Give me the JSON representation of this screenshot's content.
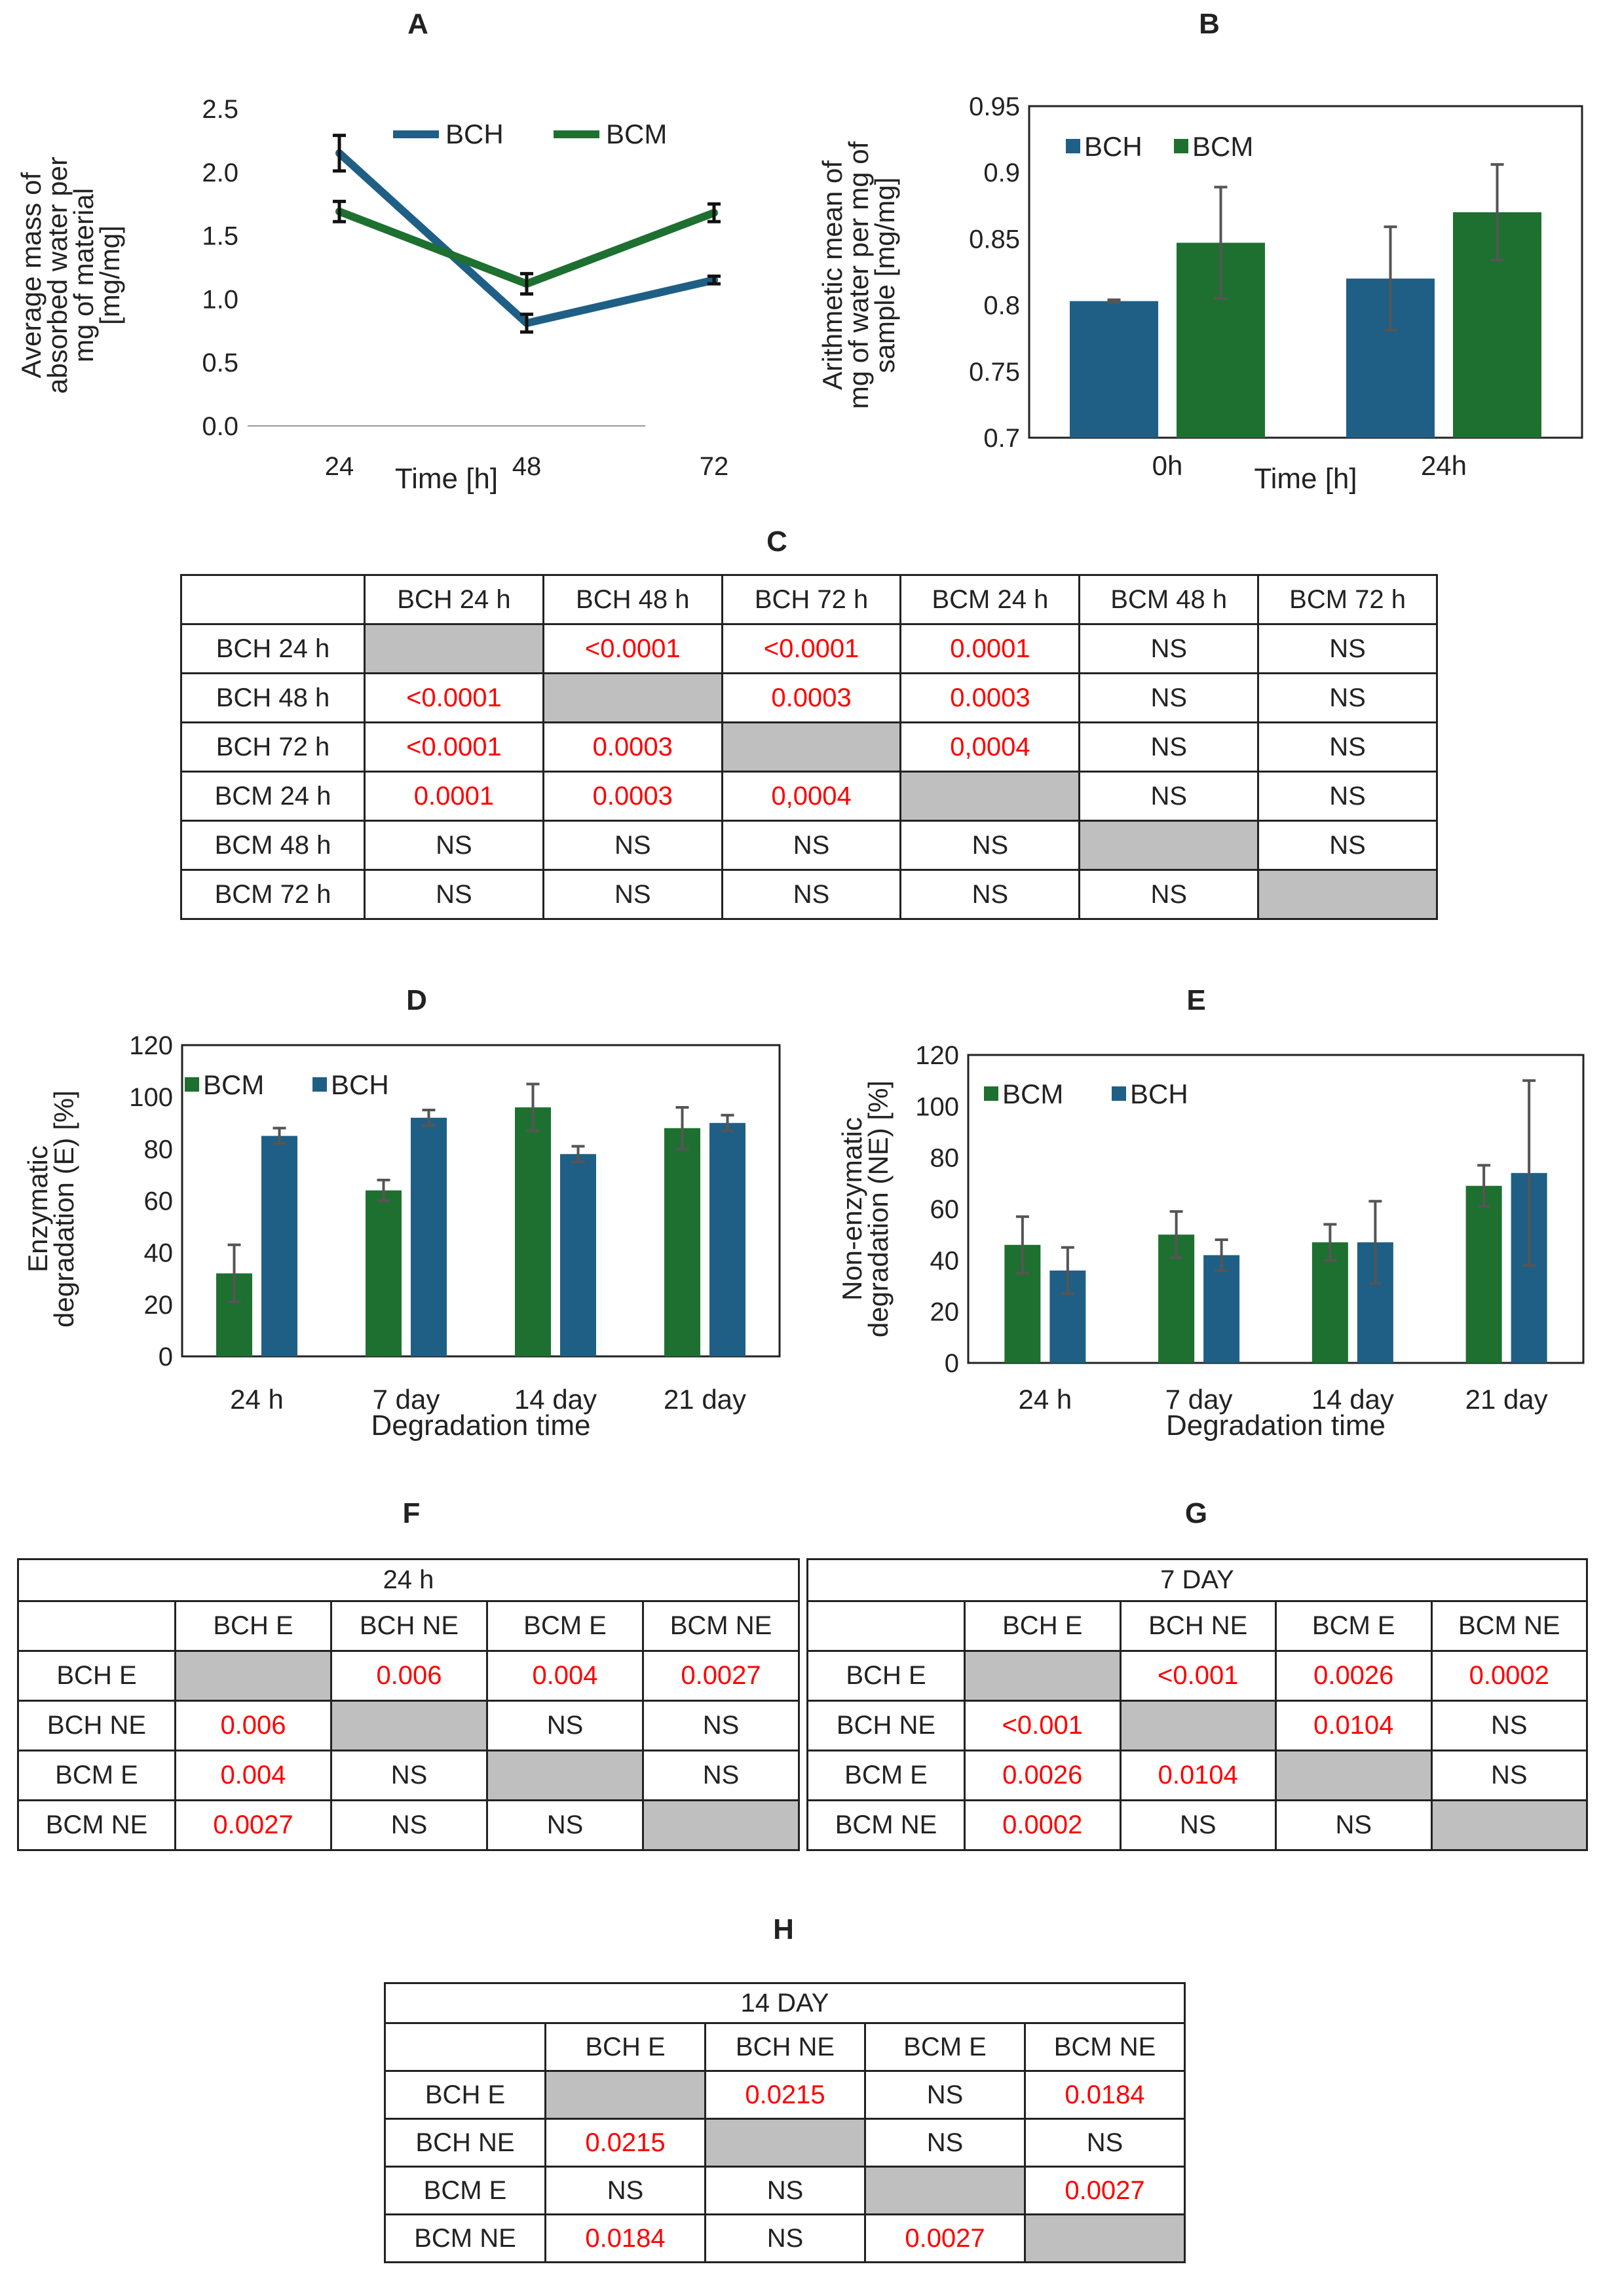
{
  "panels": {
    "A": "A",
    "B": "B",
    "C": "C",
    "D": "D",
    "E": "E",
    "F": "F",
    "G": "G",
    "H": "H"
  },
  "colors": {
    "bch": "#1f5f86",
    "bcm": "#1e7030",
    "significant": "#ff0000",
    "diagonal": "#bfbfbf"
  },
  "chart_data": [
    {
      "id": "A",
      "type": "line",
      "ylabel_lines": [
        "Average  mass of",
        "absorbed water per",
        "mg of material",
        "[mg/mg]"
      ],
      "xlabel": "Time [h]",
      "categories": [
        "24",
        "48",
        "72"
      ],
      "ylim": [
        0.0,
        2.5
      ],
      "yticks": [
        "0.0",
        "0.5",
        "1.0",
        "1.5",
        "2.0",
        "2.5"
      ],
      "series": [
        {
          "name": "BCH",
          "values": [
            2.15,
            0.81,
            1.15
          ],
          "errors": [
            0.14,
            0.07,
            0.03
          ]
        },
        {
          "name": "BCM",
          "values": [
            1.69,
            1.12,
            1.68
          ],
          "errors": [
            0.08,
            0.08,
            0.07
          ]
        }
      ]
    },
    {
      "id": "B",
      "type": "bar",
      "ylabel_lines": [
        "Arithmetic mean of",
        "mg of water per mg of",
        "sample [mg/mg]"
      ],
      "xlabel": "Time [h]",
      "categories": [
        "0h",
        "24h"
      ],
      "ylim": [
        0.7,
        0.95
      ],
      "yticks": [
        "0.7",
        "0.75",
        "0.8",
        "0.85",
        "0.9",
        "0.95"
      ],
      "series": [
        {
          "name": "BCH",
          "values": [
            0.803,
            0.82
          ],
          "errors": [
            0.001,
            0.039
          ]
        },
        {
          "name": "BCM",
          "values": [
            0.847,
            0.87
          ],
          "errors": [
            0.042,
            0.036
          ]
        }
      ]
    },
    {
      "id": "D",
      "type": "bar",
      "ylabel_lines": [
        "Enzymatic",
        "degradation (E) [%]"
      ],
      "xlabel": "Degradation time",
      "categories": [
        "24 h",
        "7 day",
        "14 day",
        "21 day"
      ],
      "ylim": [
        0,
        120
      ],
      "yticks": [
        "0",
        "20",
        "40",
        "60",
        "80",
        "100",
        "120"
      ],
      "series": [
        {
          "name": "BCM",
          "values": [
            32,
            64,
            96,
            88
          ],
          "errors": [
            11,
            4,
            9,
            8
          ]
        },
        {
          "name": "BCH",
          "values": [
            85,
            92,
            78,
            90
          ],
          "errors": [
            3,
            3,
            3,
            3
          ]
        }
      ]
    },
    {
      "id": "E",
      "type": "bar",
      "ylabel_lines": [
        "Non-enzymatic",
        "degradation (NE) [%]"
      ],
      "xlabel": "Degradation time",
      "categories": [
        "24 h",
        "7 day",
        "14 day",
        "21 day"
      ],
      "ylim": [
        0,
        120
      ],
      "yticks": [
        "0",
        "20",
        "40",
        "60",
        "80",
        "100",
        "120"
      ],
      "series": [
        {
          "name": "BCM",
          "values": [
            46,
            50,
            47,
            69
          ],
          "errors": [
            11,
            9,
            7,
            8
          ]
        },
        {
          "name": "BCH",
          "values": [
            36,
            42,
            47,
            74
          ],
          "errors": [
            9,
            6,
            16,
            36
          ]
        }
      ]
    }
  ],
  "tables": {
    "C": {
      "title": "",
      "headers": [
        "",
        "BCH 24 h",
        "BCH 48 h",
        "BCH 72 h",
        "BCM 24 h",
        "BCM 48 h",
        "BCM 72 h"
      ],
      "rows": [
        [
          "BCH 24 h",
          "",
          "<0.0001",
          "<0.0001",
          "0.0001",
          "NS",
          "NS"
        ],
        [
          "BCH 48 h",
          "<0.0001",
          "",
          "0.0003",
          "0.0003",
          "NS",
          "NS"
        ],
        [
          "BCH 72 h",
          "<0.0001",
          "0.0003",
          "",
          "0,0004",
          "NS",
          "NS"
        ],
        [
          "BCM 24 h",
          "0.0001",
          "0.0003",
          "0,0004",
          "",
          "NS",
          "NS"
        ],
        [
          "BCM 48 h",
          "NS",
          "NS",
          "NS",
          "NS",
          "",
          "NS"
        ],
        [
          "BCM 72 h",
          "NS",
          "NS",
          "NS",
          "NS",
          "NS",
          ""
        ]
      ]
    },
    "F": {
      "title": "24 h",
      "headers": [
        "",
        "BCH E",
        "BCH NE",
        "BCM E",
        "BCM NE"
      ],
      "rows": [
        [
          "BCH E",
          "",
          "0.006",
          "0.004",
          "0.0027"
        ],
        [
          "BCH NE",
          "0.006",
          "",
          "NS",
          "NS"
        ],
        [
          "BCM E",
          "0.004",
          "NS",
          "",
          "NS"
        ],
        [
          "BCM NE",
          "0.0027",
          "NS",
          "NS",
          ""
        ]
      ]
    },
    "G": {
      "title": "7 DAY",
      "headers": [
        "",
        "BCH E",
        "BCH NE",
        "BCM E",
        "BCM NE"
      ],
      "rows": [
        [
          "BCH E",
          "",
          "<0.001",
          "0.0026",
          "0.0002"
        ],
        [
          "BCH NE",
          "<0.001",
          "",
          "0.0104",
          "NS"
        ],
        [
          "BCM E",
          "0.0026",
          "0.0104",
          "",
          "NS"
        ],
        [
          "BCM NE",
          "0.0002",
          "NS",
          "NS",
          ""
        ]
      ]
    },
    "H": {
      "title": "14 DAY",
      "headers": [
        "",
        "BCH E",
        "BCH NE",
        "BCM E",
        "BCM NE"
      ],
      "rows": [
        [
          "BCH E",
          "",
          "0.0215",
          "NS",
          "0.0184"
        ],
        [
          "BCH NE",
          "0.0215",
          "",
          "NS",
          "NS"
        ],
        [
          "BCM E",
          "NS",
          "NS",
          "",
          "0.0027"
        ],
        [
          "BCM NE",
          "0.0184",
          "NS",
          "0.0027",
          ""
        ]
      ]
    }
  }
}
